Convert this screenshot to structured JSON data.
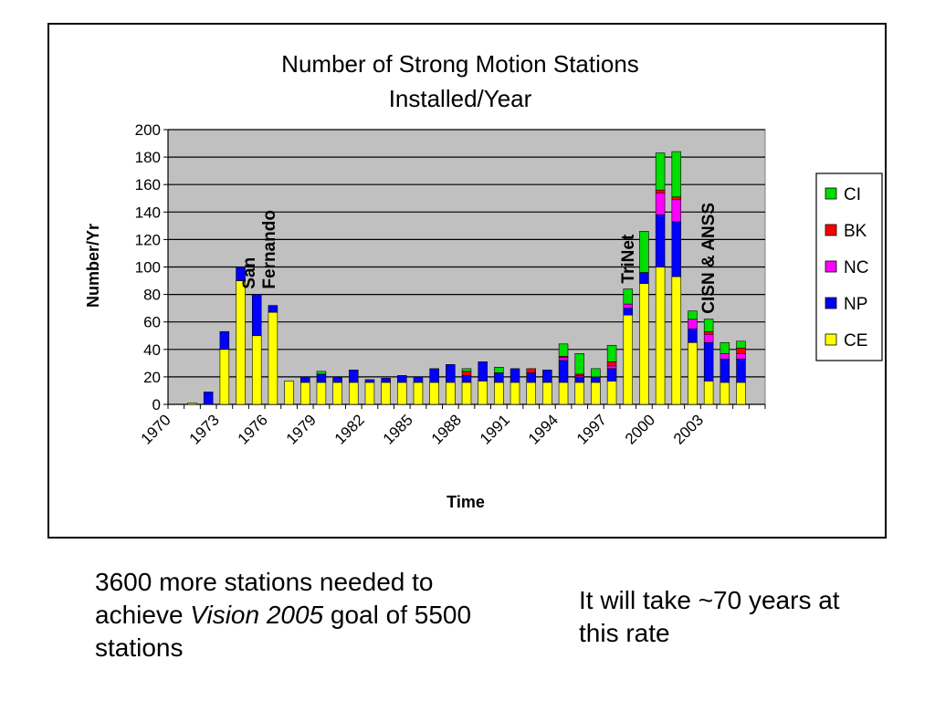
{
  "chart_data": {
    "type": "bar",
    "stacked": true,
    "title_line1": "Number of Strong Motion Stations",
    "title_line2": "Installed/Year",
    "xlabel": "Time",
    "ylabel": "Number/Yr",
    "ylim": [
      0,
      200
    ],
    "y_ticks": [
      0,
      20,
      40,
      60,
      80,
      100,
      120,
      140,
      160,
      180,
      200
    ],
    "x_tick_labels": [
      "1970",
      "1973",
      "1976",
      "1979",
      "1982",
      "1985",
      "1988",
      "1991",
      "1994",
      "1997",
      "2000",
      "2003"
    ],
    "categories": [
      "1970",
      "1971",
      "1972",
      "1973",
      "1974",
      "1975",
      "1976",
      "1977",
      "1978",
      "1979",
      "1980",
      "1981",
      "1982",
      "1983",
      "1984",
      "1985",
      "1986",
      "1987",
      "1988",
      "1989",
      "1990",
      "1991",
      "1992",
      "1993",
      "1994",
      "1995",
      "1996",
      "1997",
      "1998",
      "1999",
      "2000",
      "2001",
      "2002",
      "2003",
      "2004",
      "2005",
      "2006"
    ],
    "series": [
      {
        "name": "CE",
        "color": "#ffff00",
        "values": [
          0,
          1,
          0,
          40,
          90,
          50,
          67,
          17,
          16,
          16,
          16,
          16,
          16,
          16,
          16,
          16,
          16,
          16,
          16,
          17,
          16,
          16,
          16,
          16,
          16,
          16,
          16,
          17,
          65,
          88,
          100,
          93,
          45,
          17,
          16,
          16,
          0
        ]
      },
      {
        "name": "NP",
        "color": "#0000ff",
        "values": [
          0,
          0,
          9,
          13,
          10,
          30,
          5,
          0,
          4,
          6,
          4,
          9,
          2,
          3,
          5,
          4,
          10,
          13,
          5,
          14,
          7,
          10,
          7,
          9,
          16,
          4,
          4,
          9,
          5,
          8,
          38,
          40,
          10,
          28,
          17,
          17,
          0
        ]
      },
      {
        "name": "NC",
        "color": "#ff00ff",
        "values": [
          0,
          0,
          0,
          0,
          0,
          0,
          0,
          0,
          0,
          0,
          0,
          0,
          0,
          0,
          0,
          0,
          0,
          0,
          0,
          0,
          0,
          0,
          0,
          0,
          2,
          1,
          0,
          2,
          3,
          0,
          16,
          16,
          7,
          6,
          4,
          4,
          0
        ]
      },
      {
        "name": "BK",
        "color": "#ff0000",
        "values": [
          0,
          0,
          0,
          0,
          0,
          0,
          0,
          0,
          0,
          0,
          0,
          0,
          0,
          0,
          0,
          0,
          0,
          0,
          3,
          0,
          0,
          0,
          3,
          0,
          1,
          1,
          0,
          3,
          0,
          0,
          2,
          2,
          0,
          2,
          0,
          4,
          0
        ]
      },
      {
        "name": "CI",
        "color": "#00dd00",
        "values": [
          0,
          0,
          0,
          0,
          0,
          0,
          0,
          0,
          0,
          2,
          0,
          0,
          0,
          0,
          0,
          0,
          0,
          0,
          2,
          0,
          4,
          0,
          0,
          0,
          9,
          15,
          6,
          12,
          11,
          30,
          27,
          33,
          6,
          9,
          8,
          5,
          0
        ]
      }
    ],
    "legend_order": [
      "CI",
      "BK",
      "NC",
      "NP",
      "CE"
    ],
    "annotations": [
      {
        "line1": "San",
        "line2": "Fernando",
        "year_index": 5
      },
      {
        "line1": "TriNet",
        "line2": "",
        "year_index": 28
      },
      {
        "line1": "CISN & ANSS",
        "line2": "",
        "year_index": 33
      }
    ],
    "plot_background": "#c0c0c0",
    "grid": true,
    "legend_position": "right"
  },
  "caption_left": {
    "part1": "3600 more stations needed to achieve ",
    "italic": "Vision 2005",
    "part2": " goal of 5500 stations"
  },
  "caption_right": {
    "text": "It will take ~70 years at this rate"
  }
}
